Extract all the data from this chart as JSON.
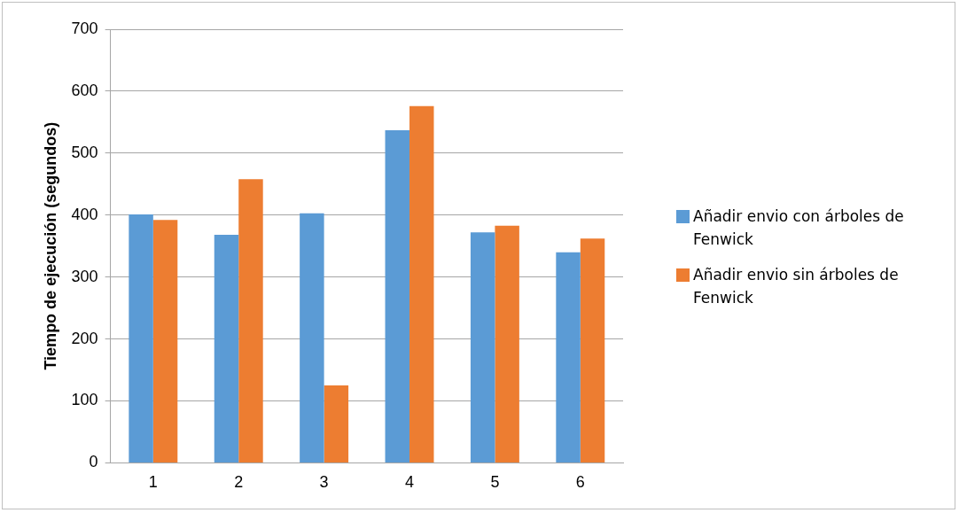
{
  "chart_data": {
    "type": "bar",
    "ylabel": "Tiempo de ejecución (segundos)",
    "categories": [
      "1",
      "2",
      "3",
      "4",
      "5",
      "6"
    ],
    "series": [
      {
        "name": "Añadir envio con árboles de Fenwick",
        "color": "#5b9bd5",
        "values": [
          401,
          368,
          403,
          537,
          372,
          340
        ]
      },
      {
        "name": "Añadir envio sin árboles de Fenwick",
        "color": "#ed7d31",
        "values": [
          392,
          458,
          125,
          576,
          383,
          362
        ]
      }
    ],
    "ylim": [
      0,
      700
    ],
    "yticks": [
      0,
      100,
      200,
      300,
      400,
      500,
      600,
      700
    ],
    "grid": "y",
    "legend": "right"
  }
}
